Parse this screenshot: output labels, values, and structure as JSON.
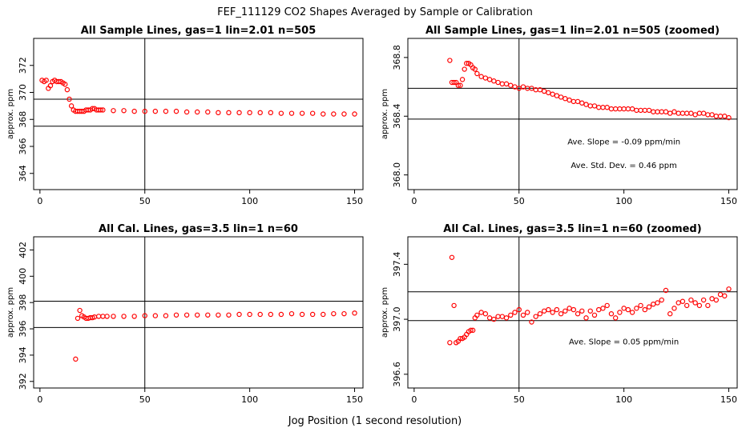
{
  "figure": {
    "title": "FEF_111129  CO2 Shapes Averaged by Sample or Calibration",
    "xlabel": "Jog Position (1 second resolution)"
  },
  "chart_data": [
    {
      "type": "scatter",
      "title": "All Sample Lines, gas=1 lin=2.01 n=505",
      "ylabel": "approx. ppm",
      "xlim": [
        -3,
        154
      ],
      "ylim": [
        362.8,
        374
      ],
      "xticks": [
        0,
        50,
        100,
        150
      ],
      "yticks": [
        364,
        366,
        368,
        370,
        372
      ],
      "hlines": [
        367.5,
        369.5
      ],
      "vline": 50,
      "annotations": [],
      "series": [
        {
          "color": "#ff0000",
          "points": [
            [
              1,
              370.9
            ],
            [
              2,
              370.8
            ],
            [
              3,
              370.9
            ],
            [
              4,
              370.3
            ],
            [
              5,
              370.5
            ],
            [
              6,
              370.8
            ],
            [
              7,
              370.9
            ],
            [
              8,
              370.8
            ],
            [
              9,
              370.8
            ],
            [
              10,
              370.8
            ],
            [
              11,
              370.7
            ],
            [
              12,
              370.6
            ],
            [
              13,
              370.2
            ],
            [
              14,
              369.5
            ],
            [
              15,
              369.0
            ],
            [
              16,
              368.7
            ],
            [
              17,
              368.6
            ],
            [
              18,
              368.6
            ],
            [
              19,
              368.6
            ],
            [
              20,
              368.6
            ],
            [
              21,
              368.6
            ],
            [
              22,
              368.7
            ],
            [
              23,
              368.7
            ],
            [
              24,
              368.7
            ],
            [
              25,
              368.8
            ],
            [
              26,
              368.8
            ],
            [
              27,
              368.7
            ],
            [
              28,
              368.7
            ],
            [
              29,
              368.7
            ],
            [
              30,
              368.7
            ],
            [
              35,
              368.65
            ],
            [
              40,
              368.65
            ],
            [
              45,
              368.6
            ],
            [
              50,
              368.6
            ],
            [
              55,
              368.6
            ],
            [
              60,
              368.6
            ],
            [
              65,
              368.6
            ],
            [
              70,
              368.55
            ],
            [
              75,
              368.55
            ],
            [
              80,
              368.55
            ],
            [
              85,
              368.5
            ],
            [
              90,
              368.5
            ],
            [
              95,
              368.5
            ],
            [
              100,
              368.5
            ],
            [
              105,
              368.5
            ],
            [
              110,
              368.5
            ],
            [
              115,
              368.45
            ],
            [
              120,
              368.45
            ],
            [
              125,
              368.45
            ],
            [
              130,
              368.45
            ],
            [
              135,
              368.4
            ],
            [
              140,
              368.4
            ],
            [
              145,
              368.4
            ],
            [
              150,
              368.4
            ]
          ]
        }
      ]
    },
    {
      "type": "scatter",
      "title": "All Sample Lines, gas=1 lin=2.01 n=505 (zoomed)",
      "ylabel": "approx. ppm",
      "xlim": [
        -3,
        154
      ],
      "ylim": [
        367.9,
        368.93
      ],
      "xticks": [
        0,
        50,
        100,
        150
      ],
      "yticks": [
        368.0,
        368.4,
        368.8
      ],
      "ytick_labels": [
        "368.0",
        "368.4",
        "368.8"
      ],
      "hlines": [
        368.38,
        368.59
      ],
      "vline": 50,
      "annotations": [
        {
          "text": "Ave. Slope =  -0.09  ppm/min",
          "x": 100,
          "y": 368.23
        },
        {
          "text": "Ave. Std. Dev. =  0.46  ppm",
          "x": 100,
          "y": 368.07
        }
      ],
      "series": [
        {
          "color": "#ff0000",
          "points": [
            [
              17,
              368.78
            ],
            [
              18,
              368.63
            ],
            [
              19,
              368.63
            ],
            [
              20,
              368.63
            ],
            [
              21,
              368.61
            ],
            [
              22,
              368.61
            ],
            [
              23,
              368.65
            ],
            [
              24,
              368.72
            ],
            [
              25,
              368.76
            ],
            [
              26,
              368.76
            ],
            [
              27,
              368.75
            ],
            [
              28,
              368.73
            ],
            [
              29,
              368.72
            ],
            [
              30,
              368.69
            ],
            [
              32,
              368.67
            ],
            [
              34,
              368.66
            ],
            [
              36,
              368.65
            ],
            [
              38,
              368.64
            ],
            [
              40,
              368.63
            ],
            [
              42,
              368.62
            ],
            [
              44,
              368.62
            ],
            [
              46,
              368.61
            ],
            [
              48,
              368.6
            ],
            [
              50,
              368.59
            ],
            [
              52,
              368.6
            ],
            [
              54,
              368.59
            ],
            [
              56,
              368.59
            ],
            [
              58,
              368.58
            ],
            [
              60,
              368.58
            ],
            [
              62,
              368.57
            ],
            [
              64,
              368.56
            ],
            [
              66,
              368.55
            ],
            [
              68,
              368.54
            ],
            [
              70,
              368.53
            ],
            [
              72,
              368.52
            ],
            [
              74,
              368.51
            ],
            [
              76,
              368.5
            ],
            [
              78,
              368.5
            ],
            [
              80,
              368.49
            ],
            [
              82,
              368.48
            ],
            [
              84,
              368.47
            ],
            [
              86,
              368.47
            ],
            [
              88,
              368.46
            ],
            [
              90,
              368.46
            ],
            [
              92,
              368.46
            ],
            [
              94,
              368.45
            ],
            [
              96,
              368.45
            ],
            [
              98,
              368.45
            ],
            [
              100,
              368.45
            ],
            [
              102,
              368.45
            ],
            [
              104,
              368.45
            ],
            [
              106,
              368.44
            ],
            [
              108,
              368.44
            ],
            [
              110,
              368.44
            ],
            [
              112,
              368.44
            ],
            [
              114,
              368.43
            ],
            [
              116,
              368.43
            ],
            [
              118,
              368.43
            ],
            [
              120,
              368.43
            ],
            [
              122,
              368.42
            ],
            [
              124,
              368.43
            ],
            [
              126,
              368.42
            ],
            [
              128,
              368.42
            ],
            [
              130,
              368.42
            ],
            [
              132,
              368.42
            ],
            [
              134,
              368.41
            ],
            [
              136,
              368.42
            ],
            [
              138,
              368.42
            ],
            [
              140,
              368.41
            ],
            [
              142,
              368.41
            ],
            [
              144,
              368.4
            ],
            [
              146,
              368.4
            ],
            [
              148,
              368.4
            ],
            [
              150,
              368.39
            ]
          ]
        }
      ]
    },
    {
      "type": "scatter",
      "title": "All Cal. Lines, gas=3.5 lin=1 n=60",
      "ylabel": "approx. ppm",
      "xlim": [
        -3,
        154
      ],
      "ylim": [
        391.5,
        403
      ],
      "xticks": [
        0,
        50,
        100,
        150
      ],
      "yticks": [
        392,
        394,
        396,
        398,
        400,
        402
      ],
      "hlines": [
        396.1,
        398.1
      ],
      "vline": 50,
      "annotations": [],
      "series": [
        {
          "color": "#ff0000",
          "points": [
            [
              17,
              393.7
            ],
            [
              18,
              396.8
            ],
            [
              19,
              397.4
            ],
            [
              20,
              397.0
            ],
            [
              21,
              396.9
            ],
            [
              22,
              396.8
            ],
            [
              23,
              396.8
            ],
            [
              24,
              396.85
            ],
            [
              25,
              396.85
            ],
            [
              26,
              396.9
            ],
            [
              28,
              396.95
            ],
            [
              30,
              396.95
            ],
            [
              32,
              396.95
            ],
            [
              35,
              396.95
            ],
            [
              40,
              396.95
            ],
            [
              45,
              396.95
            ],
            [
              50,
              397.0
            ],
            [
              55,
              397.0
            ],
            [
              60,
              397.0
            ],
            [
              65,
              397.05
            ],
            [
              70,
              397.05
            ],
            [
              75,
              397.05
            ],
            [
              80,
              397.05
            ],
            [
              85,
              397.05
            ],
            [
              90,
              397.05
            ],
            [
              95,
              397.1
            ],
            [
              100,
              397.1
            ],
            [
              105,
              397.1
            ],
            [
              110,
              397.1
            ],
            [
              115,
              397.1
            ],
            [
              120,
              397.15
            ],
            [
              125,
              397.1
            ],
            [
              130,
              397.1
            ],
            [
              135,
              397.1
            ],
            [
              140,
              397.15
            ],
            [
              145,
              397.15
            ],
            [
              150,
              397.2
            ]
          ]
        }
      ]
    },
    {
      "type": "scatter",
      "title": "All Cal. Lines, gas=3.5 lin=1 n=60 (zoomed)",
      "ylabel": "approx. ppm",
      "xlim": [
        -3,
        154
      ],
      "ylim": [
        396.5,
        397.6
      ],
      "xticks": [
        0,
        50,
        100,
        150
      ],
      "yticks": [
        396.6,
        397.0,
        397.4
      ],
      "ytick_labels": [
        "396.6",
        "397.0",
        "397.4"
      ],
      "hlines": [
        396.99,
        397.2
      ],
      "vline": 50,
      "annotations": [
        {
          "text": "Ave. Slope =  0.05  ppm/min",
          "x": 100,
          "y": 396.84
        }
      ],
      "series": [
        {
          "color": "#ff0000",
          "points": [
            [
              17,
              396.83
            ],
            [
              18,
              397.45
            ],
            [
              19,
              397.1
            ],
            [
              20,
              396.83
            ],
            [
              21,
              396.84
            ],
            [
              22,
              396.86
            ],
            [
              23,
              396.86
            ],
            [
              24,
              396.87
            ],
            [
              25,
              396.89
            ],
            [
              26,
              396.91
            ],
            [
              27,
              396.92
            ],
            [
              28,
              396.92
            ],
            [
              29,
              397.01
            ],
            [
              30,
              397.03
            ],
            [
              32,
              397.05
            ],
            [
              34,
              397.04
            ],
            [
              36,
              397.01
            ],
            [
              38,
              397.0
            ],
            [
              40,
              397.02
            ],
            [
              42,
              397.02
            ],
            [
              44,
              397.01
            ],
            [
              46,
              397.03
            ],
            [
              48,
              397.05
            ],
            [
              50,
              397.07
            ],
            [
              52,
              397.03
            ],
            [
              54,
              397.05
            ],
            [
              56,
              396.98
            ],
            [
              58,
              397.02
            ],
            [
              60,
              397.04
            ],
            [
              62,
              397.06
            ],
            [
              64,
              397.07
            ],
            [
              66,
              397.05
            ],
            [
              68,
              397.07
            ],
            [
              70,
              397.04
            ],
            [
              72,
              397.06
            ],
            [
              74,
              397.08
            ],
            [
              76,
              397.07
            ],
            [
              78,
              397.04
            ],
            [
              80,
              397.06
            ],
            [
              82,
              397.01
            ],
            [
              84,
              397.06
            ],
            [
              86,
              397.03
            ],
            [
              88,
              397.07
            ],
            [
              90,
              397.08
            ],
            [
              92,
              397.1
            ],
            [
              94,
              397.04
            ],
            [
              96,
              397.01
            ],
            [
              98,
              397.05
            ],
            [
              100,
              397.08
            ],
            [
              102,
              397.07
            ],
            [
              104,
              397.05
            ],
            [
              106,
              397.08
            ],
            [
              108,
              397.1
            ],
            [
              110,
              397.07
            ],
            [
              112,
              397.09
            ],
            [
              114,
              397.11
            ],
            [
              116,
              397.12
            ],
            [
              118,
              397.14
            ],
            [
              120,
              397.21
            ],
            [
              122,
              397.04
            ],
            [
              124,
              397.08
            ],
            [
              126,
              397.12
            ],
            [
              128,
              397.13
            ],
            [
              130,
              397.1
            ],
            [
              132,
              397.14
            ],
            [
              134,
              397.12
            ],
            [
              136,
              397.1
            ],
            [
              138,
              397.14
            ],
            [
              140,
              397.1
            ],
            [
              142,
              397.15
            ],
            [
              144,
              397.14
            ],
            [
              146,
              397.18
            ],
            [
              148,
              397.17
            ],
            [
              150,
              397.22
            ]
          ]
        }
      ]
    }
  ]
}
